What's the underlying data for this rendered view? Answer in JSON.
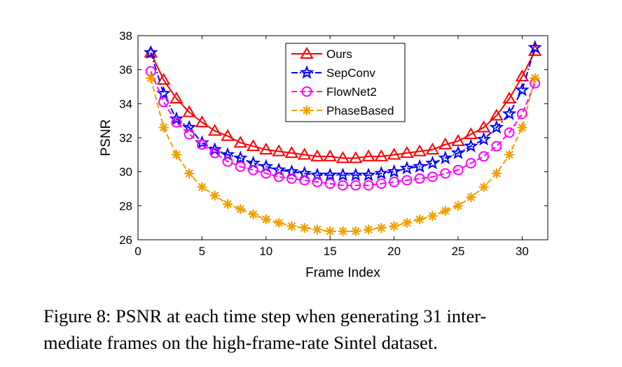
{
  "chart_data": {
    "type": "line",
    "xlabel": "Frame Index",
    "ylabel": "PSNR",
    "xlim": [
      0,
      32
    ],
    "ylim": [
      26,
      38
    ],
    "xticks": [
      0,
      5,
      10,
      15,
      20,
      25,
      30
    ],
    "yticks": [
      26,
      28,
      30,
      32,
      34,
      36,
      38
    ],
    "grid": false,
    "legend_position": "top-center",
    "x": [
      1,
      2,
      3,
      4,
      5,
      6,
      7,
      8,
      9,
      10,
      11,
      12,
      13,
      14,
      15,
      16,
      17,
      18,
      19,
      20,
      21,
      22,
      23,
      24,
      25,
      26,
      27,
      28,
      29,
      30,
      31
    ],
    "series": [
      {
        "name": "Ours",
        "color": "#ff0000",
        "marker": "triangle",
        "dash": "solid",
        "values": [
          37.0,
          35.4,
          34.3,
          33.5,
          32.9,
          32.4,
          32.1,
          31.7,
          31.5,
          31.3,
          31.2,
          31.1,
          31.0,
          30.9,
          30.9,
          30.8,
          30.8,
          30.9,
          30.9,
          31.0,
          31.1,
          31.2,
          31.3,
          31.6,
          31.8,
          32.2,
          32.6,
          33.3,
          34.3,
          35.6,
          37.1
        ]
      },
      {
        "name": "SepConv",
        "color": "#0000ff",
        "marker": "star",
        "dash": "dashdot",
        "values": [
          37.0,
          34.6,
          33.1,
          32.6,
          31.7,
          31.3,
          31.0,
          30.8,
          30.5,
          30.3,
          30.1,
          30.0,
          29.9,
          29.8,
          29.8,
          29.8,
          29.8,
          29.8,
          29.9,
          30.0,
          30.2,
          30.3,
          30.5,
          30.8,
          31.1,
          31.5,
          31.9,
          32.6,
          33.4,
          34.8,
          37.3
        ]
      },
      {
        "name": "FlowNet2",
        "color": "#ff00ff",
        "marker": "circle",
        "dash": "dashed",
        "values": [
          35.9,
          34.1,
          32.9,
          32.2,
          31.6,
          31.1,
          30.6,
          30.3,
          30.1,
          29.9,
          29.7,
          29.6,
          29.5,
          29.4,
          29.3,
          29.2,
          29.2,
          29.2,
          29.3,
          29.4,
          29.5,
          29.6,
          29.7,
          29.9,
          30.1,
          30.5,
          30.9,
          31.5,
          32.3,
          33.4,
          35.2
        ]
      },
      {
        "name": "PhaseBased",
        "color": "#f0a000",
        "marker": "asterisk",
        "dash": "dashed",
        "values": [
          35.5,
          32.6,
          31.0,
          29.9,
          29.1,
          28.6,
          28.1,
          27.8,
          27.5,
          27.2,
          27.0,
          26.8,
          26.7,
          26.6,
          26.5,
          26.5,
          26.5,
          26.6,
          26.7,
          26.8,
          27.0,
          27.2,
          27.4,
          27.7,
          28.0,
          28.5,
          29.1,
          29.9,
          31.0,
          32.6,
          35.5
        ]
      }
    ]
  },
  "caption": {
    "line1": "Figure 8: PSNR at each time step when generating 31 inter-",
    "line2": "mediate frames on the high-frame-rate Sintel dataset."
  }
}
